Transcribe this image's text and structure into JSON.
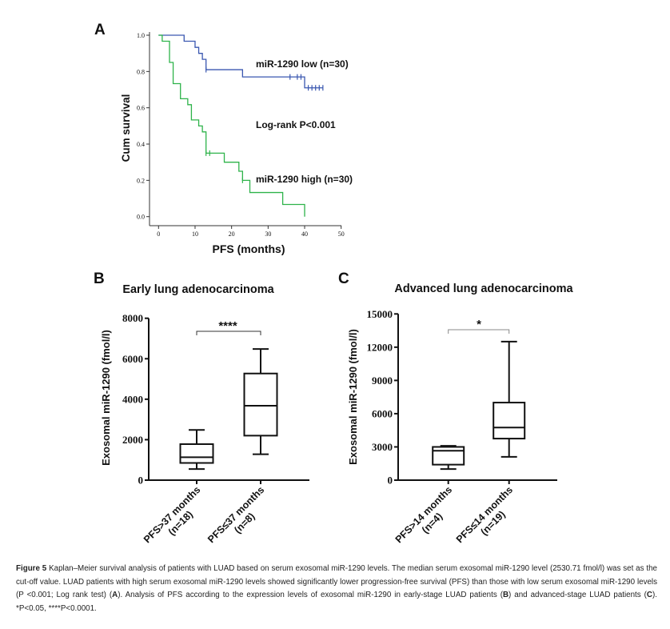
{
  "chart_data": [
    {
      "panel": "A",
      "type": "line",
      "subtype": "kaplan-meier",
      "xlabel": "PFS (months)",
      "ylabel": "Cum survival",
      "xlim": [
        0,
        50
      ],
      "ylim": [
        0,
        1
      ],
      "xticks": [
        "0",
        "10",
        "20",
        "30",
        "40",
        "50"
      ],
      "yticks": [
        "0.0",
        "0.2",
        "0.4",
        "0.6",
        "0.8",
        "1.0"
      ],
      "annotation": "Log-rank P<0.001",
      "series": [
        {
          "name": "miR-1290 low (n=30)",
          "color": "#3a57b0",
          "steps": [
            [
              0,
              1
            ],
            [
              7,
              0.967
            ],
            [
              10,
              0.933
            ],
            [
              11,
              0.9
            ],
            [
              12,
              0.867
            ],
            [
              13,
              0.81
            ],
            [
              23,
              0.77
            ],
            [
              40,
              0.71
            ]
          ],
          "end": 45,
          "censored": [
            13,
            36,
            38,
            39,
            41,
            42,
            43,
            44,
            45
          ]
        },
        {
          "name": "miR-1290 high (n=30)",
          "color": "#2eb34a",
          "steps": [
            [
              0,
              1
            ],
            [
              1,
              0.967
            ],
            [
              3,
              0.85
            ],
            [
              4,
              0.733
            ],
            [
              6,
              0.65
            ],
            [
              8,
              0.617
            ],
            [
              9,
              0.533
            ],
            [
              11,
              0.5
            ],
            [
              12,
              0.467
            ],
            [
              13,
              0.35
            ],
            [
              18,
              0.3
            ],
            [
              22,
              0.25
            ],
            [
              23,
              0.2
            ],
            [
              25,
              0.133
            ],
            [
              34,
              0.067
            ],
            [
              40,
              0
            ]
          ],
          "end": 40,
          "censored": [
            13,
            14,
            23
          ]
        }
      ]
    },
    {
      "panel": "B",
      "type": "box",
      "title": "Early lung adenocarcinoma",
      "ylabel": "Exosomal miR-1290 (fmol/l)",
      "ylim": [
        0,
        8000
      ],
      "yticks": [
        "0",
        "2000",
        "4000",
        "6000",
        "8000"
      ],
      "significance": "****",
      "categories": [
        [
          "PFS>37 months",
          "(n=18)"
        ],
        [
          "PFS≤37 months",
          "(n=8)"
        ]
      ],
      "boxes": [
        {
          "min": 550,
          "q1": 850,
          "median": 1130,
          "q3": 1780,
          "max": 2480
        },
        {
          "min": 1280,
          "q1": 2200,
          "median": 3680,
          "q3": 5270,
          "max": 6480
        }
      ]
    },
    {
      "panel": "C",
      "type": "box",
      "title": "Advanced lung adenocarcinoma",
      "ylabel": "Exosomal miR-1290 (fmol/l)",
      "ylim": [
        0,
        15000
      ],
      "yticks": [
        "0",
        "3000",
        "6000",
        "9000",
        "12000",
        "15000"
      ],
      "significance": "*",
      "categories": [
        [
          "PFS>14 months",
          "(n=4)"
        ],
        [
          "PFS≤14 months",
          "(n=19)"
        ]
      ],
      "boxes": [
        {
          "min": 1000,
          "q1": 1400,
          "median": 2650,
          "q3": 3000,
          "max": 3100
        },
        {
          "min": 2100,
          "q1": 3750,
          "median": 4750,
          "q3": 7000,
          "max": 12500
        }
      ]
    }
  ],
  "caption": {
    "label": "Figure 5",
    "p1": " Kaplan–Meier survival analysis of patients with LUAD based on serum exosomal miR-1290 levels. The median serum exosomal miR-1290 level (2530.71 fmol/l) was set as the cut-off value. LUAD patients with high serum exosomal miR-1290 levels showed significantly lower progression-free survival (PFS) than those with low serum exosomal miR-1290 levels (P <0.001; Log rank test) (",
    "refA": "A",
    "p2": "). Analysis of PFS according to the expression levels of exosomal miR-1290 in early-stage LUAD patients (",
    "refB": "B",
    "p3": ") and advanced-stage LUAD patients (",
    "refC": "C",
    "p4": "). *P<0.05, ****P<0.0001."
  }
}
